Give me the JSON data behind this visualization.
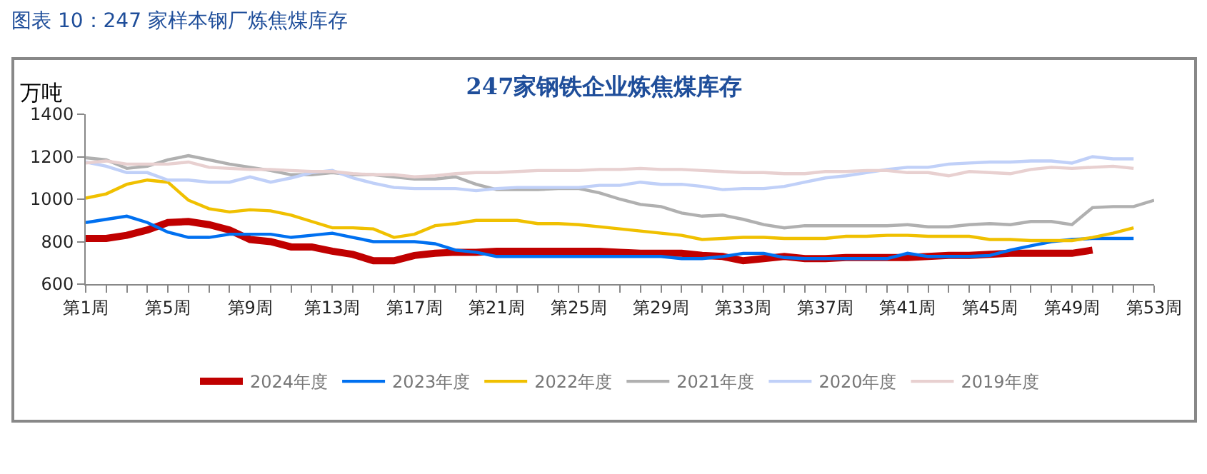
{
  "chart_data": {
    "type": "line",
    "title": "图表 10：247 家样本钢厂炼焦煤库存",
    "subtitle": "247家钢铁企业炼焦煤库存",
    "ylabel": "万吨",
    "categories": [
      "第1周",
      null,
      null,
      null,
      "第5周",
      null,
      null,
      null,
      "第9周",
      null,
      null,
      null,
      "第13周",
      null,
      null,
      null,
      "第17周",
      null,
      null,
      null,
      "第21周",
      null,
      null,
      null,
      "第25周",
      null,
      null,
      null,
      "第29周",
      null,
      null,
      null,
      "第33周",
      null,
      null,
      null,
      "第37周",
      null,
      null,
      null,
      "第41周",
      null,
      null,
      null,
      "第45周",
      null,
      null,
      null,
      "第49周",
      null,
      null,
      null,
      "第53周"
    ],
    "ylim": [
      600,
      1400
    ],
    "yticks": [
      600,
      800,
      1000,
      1200,
      1400
    ],
    "grid": false,
    "legend": "bottom",
    "marker": "none",
    "line_style": "solid",
    "series": [
      {
        "name": "2024年度",
        "color": "#c00000",
        "values": [
          815,
          815,
          830,
          855,
          890,
          895,
          880,
          855,
          810,
          800,
          775,
          775,
          755,
          740,
          710,
          710,
          735,
          745,
          750,
          750,
          755,
          755,
          755,
          755,
          755,
          755,
          750,
          745,
          745,
          745,
          735,
          730,
          710,
          720,
          730,
          720,
          720,
          725,
          725,
          725,
          725,
          730,
          735,
          735,
          740,
          745,
          745,
          745,
          745,
          760,
          null,
          null,
          null
        ]
      },
      {
        "name": "2023年度",
        "color": "#0070f0",
        "values": [
          890,
          905,
          920,
          890,
          845,
          820,
          820,
          835,
          835,
          835,
          820,
          830,
          840,
          820,
          800,
          800,
          800,
          790,
          760,
          750,
          730,
          730,
          730,
          730,
          730,
          730,
          730,
          730,
          730,
          720,
          720,
          730,
          745,
          745,
          725,
          720,
          720,
          720,
          720,
          720,
          745,
          730,
          730,
          730,
          735,
          760,
          780,
          800,
          810,
          815,
          815,
          815,
          null
        ]
      },
      {
        "name": "2022年度",
        "color": "#f0c000",
        "values": [
          1005,
          1025,
          1070,
          1090,
          1080,
          995,
          955,
          940,
          950,
          945,
          925,
          895,
          865,
          865,
          860,
          820,
          835,
          875,
          885,
          900,
          900,
          900,
          885,
          885,
          880,
          870,
          860,
          850,
          840,
          830,
          810,
          815,
          820,
          820,
          815,
          815,
          815,
          825,
          825,
          830,
          830,
          825,
          825,
          825,
          810,
          810,
          805,
          805,
          805,
          820,
          840,
          865,
          null
        ]
      },
      {
        "name": "2021年度",
        "color": "#b0b0b0",
        "values": [
          1195,
          1185,
          1145,
          1155,
          1185,
          1205,
          1185,
          1165,
          1150,
          1135,
          1115,
          1115,
          1125,
          1115,
          1115,
          1105,
          1095,
          1095,
          1105,
          1070,
          1045,
          1045,
          1045,
          1050,
          1050,
          1030,
          1000,
          975,
          965,
          935,
          920,
          925,
          905,
          880,
          865,
          875,
          875,
          875,
          875,
          875,
          880,
          870,
          870,
          880,
          885,
          880,
          895,
          895,
          880,
          960,
          965,
          965,
          995
        ]
      },
      {
        "name": "2020年度",
        "color": "#c0d0f8",
        "values": [
          1175,
          1155,
          1125,
          1125,
          1090,
          1090,
          1080,
          1080,
          1105,
          1080,
          1100,
          1125,
          1135,
          1100,
          1075,
          1055,
          1050,
          1050,
          1050,
          1040,
          1050,
          1055,
          1055,
          1055,
          1055,
          1065,
          1065,
          1080,
          1070,
          1070,
          1060,
          1045,
          1050,
          1050,
          1060,
          1080,
          1100,
          1110,
          1125,
          1140,
          1150,
          1150,
          1165,
          1170,
          1175,
          1175,
          1180,
          1180,
          1170,
          1200,
          1190,
          1190,
          null
        ]
      },
      {
        "name": "2019年度",
        "color": "#e8d0d0",
        "values": [
          1170,
          1180,
          1165,
          1165,
          1165,
          1175,
          1150,
          1145,
          1140,
          1140,
          1135,
          1130,
          1130,
          1120,
          1115,
          1115,
          1105,
          1110,
          1120,
          1125,
          1125,
          1130,
          1135,
          1135,
          1135,
          1140,
          1140,
          1145,
          1140,
          1140,
          1135,
          1130,
          1125,
          1125,
          1120,
          1120,
          1130,
          1130,
          1135,
          1135,
          1125,
          1125,
          1110,
          1130,
          1125,
          1120,
          1140,
          1150,
          1145,
          1150,
          1155,
          1145,
          null
        ]
      }
    ]
  }
}
